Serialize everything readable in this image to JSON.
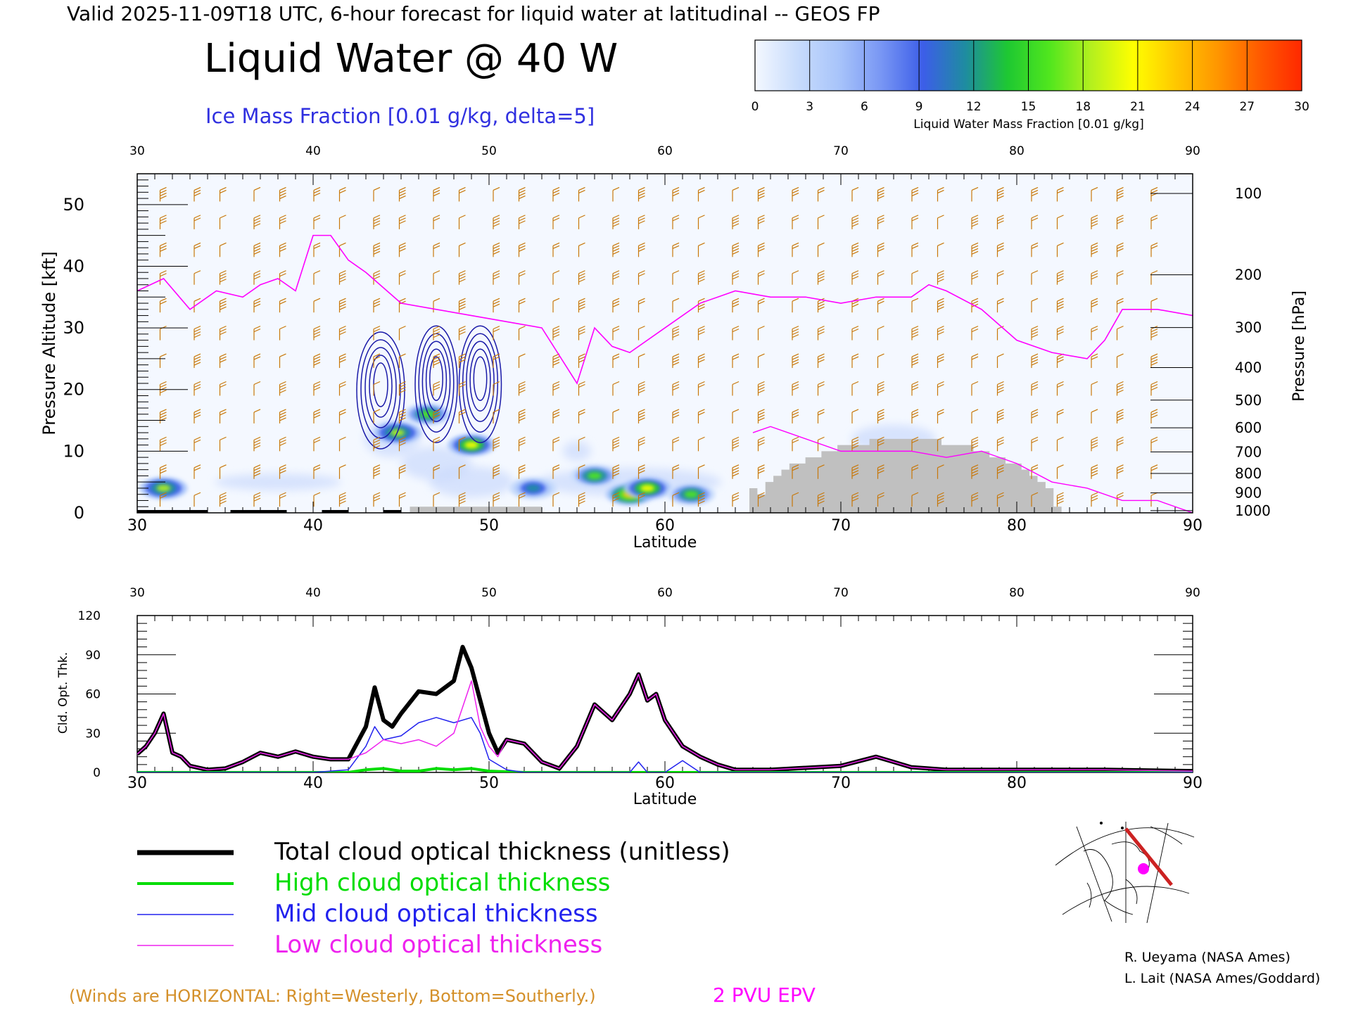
{
  "header": {
    "valid_line": "Valid 2025-11-09T18 UTC, 6-hour forecast for liquid water at latitudinal -- GEOS FP",
    "title": "Liquid Water @ 40 W",
    "subtitle": "Ice Mass Fraction [0.01 g/kg, delta=5]"
  },
  "colorbar": {
    "ticks": [
      "0",
      "3",
      "6",
      "9",
      "12",
      "15",
      "18",
      "21",
      "24",
      "27",
      "30"
    ],
    "label": "Liquid Water Mass Fraction [0.01 g/kg]",
    "colors": [
      "#f4f8ff",
      "#c8dcfc",
      "#a8c4fa",
      "#7896f4",
      "#3c5ee8",
      "#1e8ca0",
      "#1ec832",
      "#50e61e",
      "#b4f01e",
      "#ffff00",
      "#ffc800",
      "#ff9600",
      "#ff5a00",
      "#ff2800"
    ]
  },
  "top_chart": {
    "top_ticks": [
      "30",
      "40",
      "50",
      "60",
      "70",
      "80",
      "90"
    ],
    "bottom_ticks": [
      "30",
      "40",
      "50",
      "60",
      "70",
      "80",
      "90"
    ],
    "xlabel": "Latitude",
    "left_ylabel": "Pressure Altitude [kft]",
    "left_ticks": [
      "0",
      "10",
      "20",
      "30",
      "40",
      "50"
    ],
    "right_ylabel": "Pressure [hPa]",
    "right_ticks": [
      "100",
      "200",
      "300",
      "400",
      "500",
      "600",
      "700",
      "800",
      "900",
      "1000"
    ]
  },
  "chart_data": [
    {
      "type": "heatmap",
      "title": "Liquid Water @ 40 W",
      "xlabel": "Latitude",
      "ylabel": "Pressure Altitude [kft]",
      "xlim": [
        30,
        90
      ],
      "ylim": [
        0,
        55
      ],
      "pressure_ticks_hPa": [
        100,
        200,
        300,
        400,
        500,
        600,
        700,
        800,
        900,
        1000
      ],
      "liquid_water_blobs": [
        {
          "lat": 31.5,
          "kft": 4,
          "value": 18
        },
        {
          "lat": 44.8,
          "kft": 13,
          "value": 18
        },
        {
          "lat": 46.5,
          "kft": 16,
          "value": 17
        },
        {
          "lat": 49.0,
          "kft": 11,
          "value": 21
        },
        {
          "lat": 52.5,
          "kft": 4,
          "value": 12
        },
        {
          "lat": 56.0,
          "kft": 6,
          "value": 15
        },
        {
          "lat": 58.0,
          "kft": 3,
          "value": 24
        },
        {
          "lat": 59.0,
          "kft": 4,
          "value": 20
        },
        {
          "lat": 61.5,
          "kft": 3,
          "value": 15
        }
      ],
      "ice_contour_centers": [
        {
          "lat": 44.0,
          "kft": 21
        },
        {
          "lat": 47.0,
          "kft": 22
        },
        {
          "lat": 49.5,
          "kft": 22
        }
      ],
      "pvu2_epv_line": {
        "lat": [
          30,
          31.5,
          33,
          34.5,
          36,
          37,
          38,
          39,
          40,
          41,
          42,
          43,
          45,
          47,
          49,
          51,
          53,
          55,
          56,
          57,
          58,
          60,
          62,
          64,
          66,
          68,
          70,
          72,
          74,
          75,
          76,
          78,
          80,
          82,
          84,
          85,
          86,
          88,
          90
        ],
        "kft": [
          36,
          38,
          33,
          36,
          35,
          37,
          38,
          36,
          45,
          45,
          41,
          39,
          34,
          33,
          32,
          31,
          30,
          21,
          30,
          27,
          26,
          30,
          34,
          36,
          35,
          35,
          34,
          35,
          35,
          37,
          36,
          33,
          28,
          26,
          25,
          28,
          33,
          33,
          32
        ]
      },
      "terrain": [
        {
          "lat_from": 64.8,
          "lat_to": 83.0,
          "max_kft": 12
        }
      ]
    },
    {
      "type": "line",
      "xlabel": "Latitude",
      "ylabel": "Cld. Opt. Thk.",
      "xlim": [
        30,
        90
      ],
      "ylim": [
        0,
        120
      ],
      "yticks": [
        0,
        30,
        60,
        90,
        120
      ],
      "series": [
        {
          "name": "Total cloud optical thickness (unitless)",
          "x": [
            30,
            30.5,
            31,
            31.5,
            32,
            32.5,
            33,
            34,
            35,
            36,
            37,
            38,
            39,
            40,
            41,
            42,
            43,
            43.5,
            44,
            44.5,
            45,
            46,
            47,
            48,
            48.5,
            49,
            49.5,
            50,
            50.5,
            51,
            52,
            53,
            54,
            55,
            56,
            57,
            58,
            58.5,
            59,
            59.5,
            60,
            61,
            62,
            63,
            64,
            66,
            70,
            72,
            74,
            76,
            80,
            85,
            90
          ],
          "y": [
            14,
            20,
            30,
            45,
            15,
            12,
            5,
            2,
            3,
            8,
            15,
            12,
            16,
            12,
            10,
            10,
            35,
            65,
            40,
            35,
            45,
            62,
            60,
            70,
            96,
            80,
            55,
            30,
            15,
            25,
            22,
            8,
            3,
            20,
            52,
            40,
            60,
            75,
            55,
            60,
            40,
            20,
            12,
            6,
            2,
            2,
            5,
            12,
            4,
            2,
            2,
            2,
            1
          ]
        },
        {
          "name": "High cloud optical thickness",
          "x": [
            30,
            40,
            42,
            43,
            44,
            45,
            46,
            47,
            48,
            49,
            50,
            52,
            60,
            70,
            80,
            90
          ],
          "y": [
            0,
            0,
            0,
            2,
            3,
            1,
            1,
            3,
            2,
            3,
            1,
            0,
            0,
            0,
            0,
            0
          ]
        },
        {
          "name": "Mid cloud optical thickness",
          "x": [
            30,
            40,
            42,
            43,
            43.5,
            44,
            45,
            46,
            47,
            48,
            49,
            49.5,
            50,
            51,
            52,
            55,
            58,
            58.5,
            59,
            60,
            61,
            62,
            70,
            80,
            90
          ],
          "y": [
            0,
            0,
            2,
            20,
            35,
            25,
            28,
            38,
            42,
            38,
            42,
            30,
            10,
            2,
            0,
            0,
            0,
            8,
            0,
            0,
            9,
            0,
            0,
            0,
            0
          ]
        },
        {
          "name": "Low cloud optical thickness",
          "x": [
            30,
            30.5,
            31,
            31.5,
            32,
            32.5,
            33,
            34,
            35,
            36,
            37,
            38,
            39,
            40,
            41,
            42,
            43,
            44,
            45,
            46,
            47,
            48,
            48.5,
            49,
            49.5,
            50,
            50.5,
            51,
            52,
            53,
            54,
            55,
            56,
            57,
            58,
            58.5,
            59,
            59.5,
            60,
            61,
            62,
            63,
            64,
            66,
            70,
            72,
            74,
            76,
            80,
            85,
            90
          ],
          "y": [
            14,
            20,
            30,
            45,
            15,
            12,
            5,
            2,
            3,
            8,
            15,
            12,
            16,
            12,
            10,
            10,
            15,
            25,
            22,
            25,
            20,
            30,
            50,
            70,
            35,
            20,
            12,
            25,
            22,
            8,
            3,
            20,
            52,
            40,
            60,
            75,
            55,
            60,
            40,
            20,
            12,
            6,
            2,
            2,
            5,
            12,
            4,
            2,
            2,
            2,
            1
          ]
        }
      ]
    }
  ],
  "bottom_chart": {
    "top_ticks": [
      "30",
      "40",
      "50",
      "60",
      "70",
      "80",
      "90"
    ],
    "bottom_ticks": [
      "30",
      "40",
      "50",
      "60",
      "70",
      "80",
      "90"
    ],
    "xlabel": "Latitude",
    "ylabel": "Cld. Opt. Thk.",
    "left_ticks": [
      "0",
      "30",
      "60",
      "90",
      "120"
    ]
  },
  "legend": {
    "items": [
      {
        "label": "Total cloud optical thickness (unitless)",
        "color": "#000000"
      },
      {
        "label": "High cloud optical thickness",
        "color": "#00dd00"
      },
      {
        "label": "Mid cloud optical thickness",
        "color": "#2222ee"
      },
      {
        "label": "Low cloud optical thickness",
        "color": "#ee22ee"
      }
    ]
  },
  "footer": {
    "winds_note": "(Winds are HORIZONTAL: Right=Westerly, Bottom=Southerly.)",
    "epv_label": "2 PVU EPV",
    "credit1": "R. Ueyama (NASA Ames)",
    "credit2": "L. Lait (NASA Ames/Goddard)"
  },
  "colors": {
    "ice_contour": "#1a1aa8",
    "epv_line": "#ff00ff",
    "terrain": "#c0c0c0",
    "wind_barb": "#c8780a",
    "title_blue": "#3030e0",
    "winds_note": "#d4902a"
  }
}
